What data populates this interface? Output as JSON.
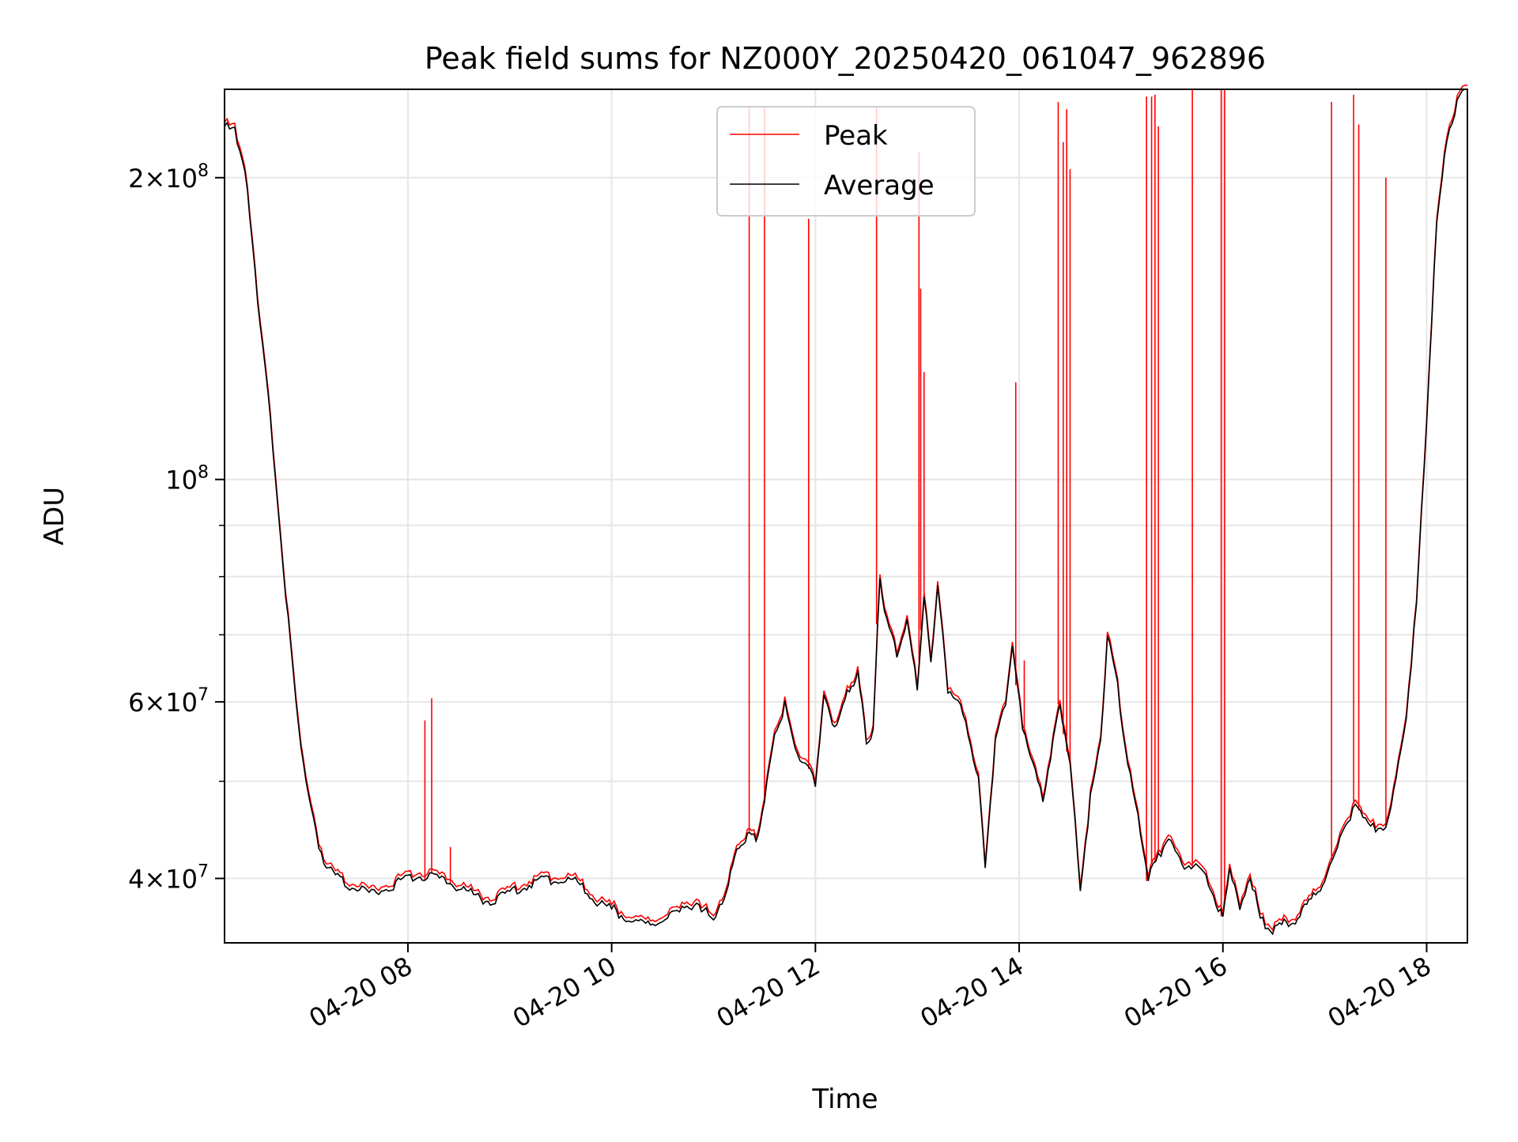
{
  "chart_data": {
    "type": "line",
    "title": "Peak field sums for NZ000Y_20250420_061047_962896",
    "xlabel": "Time",
    "ylabel": "ADU",
    "y_scale": "log",
    "ylim": [
      34500000,
      245000000
    ],
    "xlim": [
      "04-20 06:12",
      "04-20 18:24"
    ],
    "grid": true,
    "legend_position": "top-center",
    "x_ticks": [
      "04-20 08",
      "04-20 10",
      "04-20 12",
      "04-20 14",
      "04-20 16",
      "04-20 18"
    ],
    "y_tick_labels": [
      {
        "value": 40000000,
        "mantissa": "4",
        "exponent": "7"
      },
      {
        "value": 60000000,
        "mantissa": "6",
        "exponent": "7"
      },
      {
        "value": 100000000,
        "mantissa": "",
        "exponent": "8"
      },
      {
        "value": 200000000,
        "mantissa": "2",
        "exponent": "8"
      }
    ],
    "series": [
      {
        "name": "Peak",
        "color": "#ff0000",
        "note": "follows Average baseline plus isolated spikes",
        "spikes": [
          {
            "t": "04-20 08:10",
            "y": 57500000
          },
          {
            "t": "04-20 08:14",
            "y": 60500000
          },
          {
            "t": "04-20 08:25",
            "y": 43000000
          },
          {
            "t": "04-20 11:21",
            "y": 235000000
          },
          {
            "t": "04-20 11:30",
            "y": 235000000
          },
          {
            "t": "04-20 11:56",
            "y": 182000000
          },
          {
            "t": "04-20 12:36",
            "y": 235000000
          },
          {
            "t": "04-20 13:01",
            "y": 212000000
          },
          {
            "t": "04-20 13:02",
            "y": 155000000
          },
          {
            "t": "04-20 13:04",
            "y": 128000000
          },
          {
            "t": "04-20 13:58",
            "y": 125000000
          },
          {
            "t": "04-20 14:03",
            "y": 66000000
          },
          {
            "t": "04-20 14:23",
            "y": 238000000
          },
          {
            "t": "04-20 14:26",
            "y": 217000000
          },
          {
            "t": "04-20 14:28",
            "y": 234000000
          },
          {
            "t": "04-20 14:30",
            "y": 204000000
          },
          {
            "t": "04-20 15:15",
            "y": 241000000
          },
          {
            "t": "04-20 15:18",
            "y": 241000000
          },
          {
            "t": "04-20 15:20",
            "y": 242000000
          },
          {
            "t": "04-20 15:22",
            "y": 225000000
          },
          {
            "t": "04-20 15:42",
            "y": 245000000
          },
          {
            "t": "04-20 15:59",
            "y": 245000000
          },
          {
            "t": "04-20 16:01",
            "y": 245000000
          },
          {
            "t": "04-20 17:04",
            "y": 238000000
          },
          {
            "t": "04-20 17:17",
            "y": 242000000
          },
          {
            "t": "04-20 17:20",
            "y": 226000000
          },
          {
            "t": "04-20 17:36",
            "y": 200000000
          }
        ]
      },
      {
        "name": "Average",
        "color": "#000000",
        "points": [
          [
            "04-20 06:12",
            225000000
          ],
          [
            "04-20 06:18",
            222000000
          ],
          [
            "04-20 06:24",
            205000000
          ],
          [
            "04-20 06:30",
            160000000
          ],
          [
            "04-20 06:36",
            130000000
          ],
          [
            "04-20 06:42",
            100000000
          ],
          [
            "04-20 06:48",
            77000000
          ],
          [
            "04-20 06:54",
            60000000
          ],
          [
            "04-20 07:00",
            50000000
          ],
          [
            "04-20 07:06",
            44000000
          ],
          [
            "04-20 07:12",
            41000000
          ],
          [
            "04-20 07:20",
            39800000
          ],
          [
            "04-20 07:30",
            39000000
          ],
          [
            "04-20 07:40",
            38600000
          ],
          [
            "04-20 07:50",
            39300000
          ],
          [
            "04-20 08:00",
            40000000
          ],
          [
            "04-20 08:10",
            40200000
          ],
          [
            "04-20 08:20",
            39800000
          ],
          [
            "04-20 08:30",
            39200000
          ],
          [
            "04-20 08:40",
            38400000
          ],
          [
            "04-20 08:50",
            37800000
          ],
          [
            "04-20 09:00",
            38800000
          ],
          [
            "04-20 09:10",
            39400000
          ],
          [
            "04-20 09:20",
            39800000
          ],
          [
            "04-20 09:30",
            40000000
          ],
          [
            "04-20 09:40",
            39600000
          ],
          [
            "04-20 09:50",
            38000000
          ],
          [
            "04-20 10:00",
            37300000
          ],
          [
            "04-20 10:10",
            36500000
          ],
          [
            "04-20 10:20",
            35800000
          ],
          [
            "04-20 10:30",
            36300000
          ],
          [
            "04-20 10:40",
            37000000
          ],
          [
            "04-20 10:50",
            38000000
          ],
          [
            "04-20 11:00",
            36200000
          ],
          [
            "04-20 11:05",
            37800000
          ],
          [
            "04-20 11:10",
            40500000
          ],
          [
            "04-20 11:15",
            43000000
          ],
          [
            "04-20 11:20",
            44000000
          ],
          [
            "04-20 11:25",
            43800000
          ],
          [
            "04-20 11:30",
            47500000
          ],
          [
            "04-20 11:36",
            56000000
          ],
          [
            "04-20 11:42",
            59500000
          ],
          [
            "04-20 11:48",
            54000000
          ],
          [
            "04-20 11:54",
            52000000
          ],
          [
            "04-20 12:00",
            50000000
          ],
          [
            "04-20 12:05",
            61000000
          ],
          [
            "04-20 12:10",
            57000000
          ],
          [
            "04-20 12:15",
            58000000
          ],
          [
            "04-20 12:20",
            62000000
          ],
          [
            "04-20 12:25",
            64000000
          ],
          [
            "04-20 12:30",
            55000000
          ],
          [
            "04-20 12:34",
            56000000
          ],
          [
            "04-20 12:38",
            80000000
          ],
          [
            "04-20 12:42",
            72000000
          ],
          [
            "04-20 12:48",
            67000000
          ],
          [
            "04-20 12:54",
            72000000
          ],
          [
            "04-20 13:00",
            62000000
          ],
          [
            "04-20 13:04",
            76000000
          ],
          [
            "04-20 13:08",
            66000000
          ],
          [
            "04-20 13:12",
            78000000
          ],
          [
            "04-20 13:18",
            62000000
          ],
          [
            "04-20 13:24",
            60000000
          ],
          [
            "04-20 13:30",
            56000000
          ],
          [
            "04-20 13:36",
            50000000
          ],
          [
            "04-20 13:40",
            41000000
          ],
          [
            "04-20 13:46",
            55000000
          ],
          [
            "04-20 13:52",
            60000000
          ],
          [
            "04-20 13:56",
            68000000
          ],
          [
            "04-20 14:02",
            57000000
          ],
          [
            "04-20 14:08",
            52000000
          ],
          [
            "04-20 14:14",
            48000000
          ],
          [
            "04-20 14:20",
            55000000
          ],
          [
            "04-20 14:24",
            60000000
          ],
          [
            "04-20 14:30",
            52000000
          ],
          [
            "04-20 14:36",
            39000000
          ],
          [
            "04-20 14:42",
            48000000
          ],
          [
            "04-20 14:48",
            55000000
          ],
          [
            "04-20 14:52",
            70000000
          ],
          [
            "04-20 14:58",
            62000000
          ],
          [
            "04-20 15:04",
            52000000
          ],
          [
            "04-20 15:10",
            46000000
          ],
          [
            "04-20 15:16",
            40000000
          ],
          [
            "04-20 15:22",
            42000000
          ],
          [
            "04-20 15:28",
            44000000
          ],
          [
            "04-20 15:36",
            41000000
          ],
          [
            "04-20 15:44",
            41500000
          ],
          [
            "04-20 15:50",
            40000000
          ],
          [
            "04-20 15:56",
            38000000
          ],
          [
            "04-20 16:00",
            36500000
          ],
          [
            "04-20 16:04",
            41000000
          ],
          [
            "04-20 16:10",
            37000000
          ],
          [
            "04-20 16:16",
            40500000
          ],
          [
            "04-20 16:22",
            36500000
          ],
          [
            "04-20 16:28",
            35500000
          ],
          [
            "04-20 16:36",
            36000000
          ],
          [
            "04-20 16:44",
            36500000
          ],
          [
            "04-20 16:52",
            38000000
          ],
          [
            "04-20 17:00",
            40000000
          ],
          [
            "04-20 17:06",
            42000000
          ],
          [
            "04-20 17:12",
            45500000
          ],
          [
            "04-20 17:18",
            47000000
          ],
          [
            "04-20 17:24",
            46000000
          ],
          [
            "04-20 17:30",
            44500000
          ],
          [
            "04-20 17:36",
            45000000
          ],
          [
            "04-20 17:42",
            50000000
          ],
          [
            "04-20 17:48",
            58000000
          ],
          [
            "04-20 17:54",
            75000000
          ],
          [
            "04-20 18:00",
            115000000
          ],
          [
            "04-20 18:06",
            180000000
          ],
          [
            "04-20 18:12",
            220000000
          ],
          [
            "04-20 18:18",
            238000000
          ],
          [
            "04-20 18:24",
            245000000
          ]
        ]
      }
    ]
  }
}
